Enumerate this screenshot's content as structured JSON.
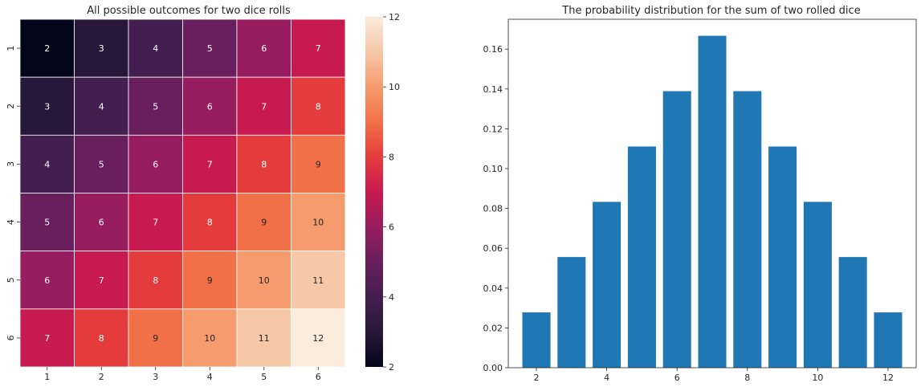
{
  "chart_data": [
    {
      "type": "heatmap",
      "title": "All possible outcomes for two dice rolls",
      "x_tick_labels": [
        "1",
        "2",
        "3",
        "4",
        "5",
        "6"
      ],
      "y_tick_labels": [
        "1",
        "2",
        "3",
        "4",
        "5",
        "6"
      ],
      "values": [
        [
          2,
          3,
          4,
          5,
          6,
          7
        ],
        [
          3,
          4,
          5,
          6,
          7,
          8
        ],
        [
          4,
          5,
          6,
          7,
          8,
          9
        ],
        [
          5,
          6,
          7,
          8,
          9,
          10
        ],
        [
          6,
          7,
          8,
          9,
          10,
          11
        ],
        [
          7,
          8,
          9,
          10,
          11,
          12
        ]
      ],
      "colorbar": {
        "range": [
          2,
          12
        ],
        "ticks": [
          "2",
          "4",
          "6",
          "8",
          "10",
          "12"
        ],
        "colormap": "rocket"
      },
      "grid_line_color": "#ffffff"
    },
    {
      "type": "bar",
      "title": "The probability distribution for the sum of two rolled dice",
      "x": [
        2,
        3,
        4,
        5,
        6,
        7,
        8,
        9,
        10,
        11,
        12
      ],
      "values": [
        0.0278,
        0.0556,
        0.0833,
        0.1111,
        0.1389,
        0.1667,
        0.1389,
        0.1111,
        0.0833,
        0.0556,
        0.0278
      ],
      "x_tick_labels": [
        "2",
        "4",
        "6",
        "8",
        "10",
        "12"
      ],
      "y_tick_labels": [
        "0.00",
        "0.02",
        "0.04",
        "0.06",
        "0.08",
        "0.10",
        "0.12",
        "0.14",
        "0.16"
      ],
      "xlim": [
        1.2,
        12.8
      ],
      "ylim": [
        0,
        0.175
      ],
      "bar_color": "#1f77b4",
      "grid": false
    }
  ]
}
